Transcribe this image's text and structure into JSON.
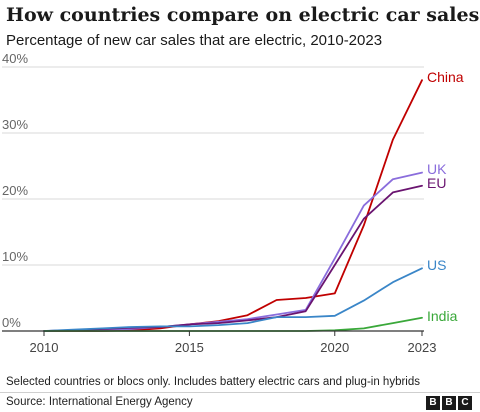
{
  "chart_data": {
    "type": "line",
    "title": "How countries compare on electric car sales",
    "subtitle": "Percentage of new car sales that are electric, 2010-2023",
    "x": [
      2010,
      2011,
      2012,
      2013,
      2014,
      2015,
      2016,
      2017,
      2018,
      2019,
      2020,
      2021,
      2022,
      2023
    ],
    "xticks": [
      "2010",
      "2015",
      "2020",
      "2023"
    ],
    "yticks": [
      "0%",
      "10%",
      "20%",
      "30%",
      "40%"
    ],
    "xlim": [
      2010,
      2023
    ],
    "ylim": [
      0,
      40
    ],
    "grid": true,
    "legend": "end-of-line labels",
    "series": [
      {
        "name": "China",
        "color": "#c00000",
        "values": [
          0,
          0,
          0,
          0.1,
          0.4,
          1,
          1.5,
          2.4,
          4.7,
          5,
          5.7,
          16,
          29,
          38
        ]
      },
      {
        "name": "UK",
        "color": "#8a6ddc",
        "values": [
          0,
          0.1,
          0.2,
          0.3,
          0.6,
          1,
          1.4,
          1.8,
          2.5,
          3.2,
          11,
          19,
          23,
          24
        ]
      },
      {
        "name": "EU",
        "color": "#6a1470",
        "values": [
          0,
          0.1,
          0.3,
          0.5,
          0.6,
          1,
          1.2,
          1.6,
          2.1,
          3,
          10,
          17,
          21,
          22
        ]
      },
      {
        "name": "US",
        "color": "#3a86c8",
        "values": [
          0,
          0.2,
          0.4,
          0.6,
          0.7,
          0.7,
          0.9,
          1.2,
          2.1,
          2.1,
          2.3,
          4.6,
          7.4,
          9.5
        ]
      },
      {
        "name": "India",
        "color": "#3aa83a",
        "values": [
          0,
          0,
          0,
          0,
          0,
          0,
          0,
          0,
          0,
          0,
          0.1,
          0.4,
          1.2,
          2
        ]
      }
    ]
  },
  "footer": {
    "note": "Selected countries or blocs only. Includes battery electric cars and plug-in hybrids",
    "source": "Source: International Energy Agency",
    "logo": [
      "B",
      "B",
      "C"
    ]
  }
}
